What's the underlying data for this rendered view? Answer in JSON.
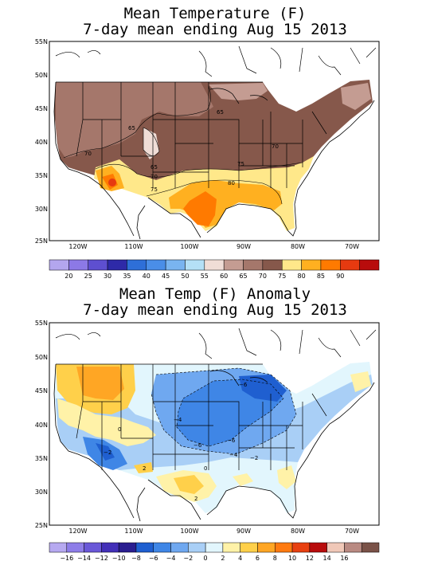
{
  "top_panel": {
    "title": "Mean Temperature (F)",
    "subtitle": "7-day mean ending Aug 15 2013",
    "lat_labels": [
      "55N",
      "50N",
      "45N",
      "40N",
      "35N",
      "30N",
      "25N"
    ],
    "lon_labels": [
      "120W",
      "110W",
      "100W",
      "90W",
      "80W",
      "70W"
    ],
    "contour_labels": [
      "65",
      "65",
      "70",
      "70",
      "65",
      "70",
      "75",
      "75",
      "80"
    ],
    "legend_ticks": [
      "20",
      "25",
      "30",
      "35",
      "40",
      "45",
      "50",
      "55",
      "60",
      "65",
      "70",
      "75",
      "80",
      "85",
      "90"
    ],
    "legend_colors": [
      "#b3a6ee",
      "#8c79e6",
      "#5e4fd0",
      "#2e2aa8",
      "#2e6fd8",
      "#4a8ee8",
      "#79b4f0",
      "#b4e0f6",
      "#f0ddd6",
      "#c49c92",
      "#a5776b",
      "#86584b",
      "#ffe88a",
      "#ffb020",
      "#ff7a00",
      "#e63a10",
      "#b80c0c"
    ]
  },
  "bottom_panel": {
    "title": "Mean Temp (F) Anomaly",
    "subtitle": "7-day mean ending Aug 15 2013",
    "lat_labels": [
      "55N",
      "50N",
      "45N",
      "40N",
      "35N",
      "30N",
      "25N"
    ],
    "lon_labels": [
      "120W",
      "110W",
      "100W",
      "90W",
      "80W",
      "70W"
    ],
    "contour_labels": [
      "−6",
      "−4",
      "−6",
      "−6",
      "−4",
      "−2",
      "0",
      "−2",
      "2",
      "2",
      "0"
    ],
    "legend_ticks": [
      "−16",
      "−14",
      "−12",
      "−10",
      "−8",
      "−6",
      "−4",
      "−2",
      "0",
      "2",
      "4",
      "6",
      "8",
      "10",
      "12",
      "14",
      "16"
    ],
    "legend_colors": [
      "#b6a9f0",
      "#8e7de8",
      "#6a58d8",
      "#4330b8",
      "#2a1e90",
      "#1f5fd0",
      "#3f86e6",
      "#6fa8f0",
      "#a9cff6",
      "#e2f6fd",
      "#fff2a8",
      "#ffd04a",
      "#ffa624",
      "#ff7a10",
      "#e84010",
      "#b80c0c",
      "#f0c8b8",
      "#b98a82",
      "#7a5248"
    ]
  }
}
